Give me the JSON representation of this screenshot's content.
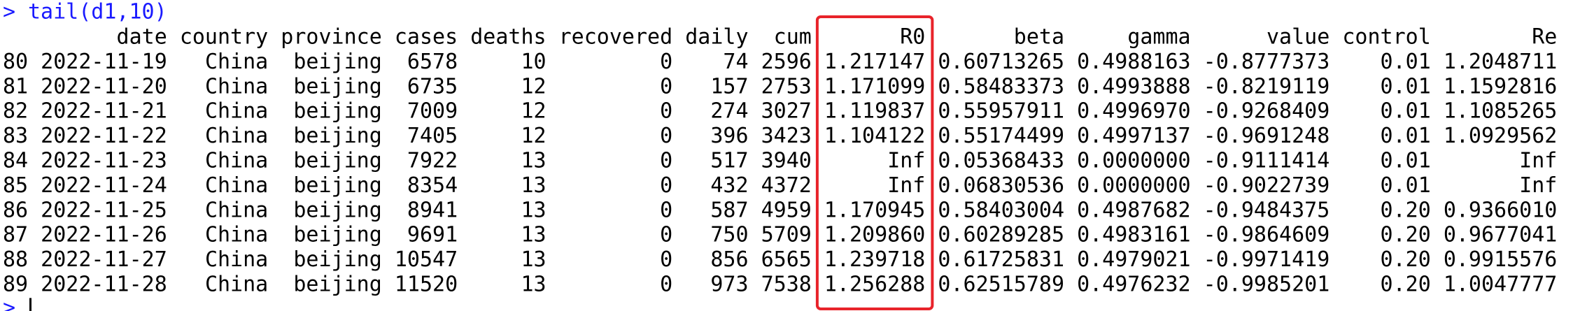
{
  "console": {
    "prompt": ">",
    "command": "tail(d1,10)",
    "table": {
      "header": [
        "date",
        "country",
        "province",
        "cases",
        "deaths",
        "recovered",
        "daily",
        "cum",
        "R0",
        "beta",
        "gamma",
        "value",
        "control",
        "Re"
      ],
      "rows": [
        [
          "80",
          "2022-11-19",
          "China",
          "beijing",
          "6578",
          "10",
          "0",
          "74",
          "2596",
          "1.217147",
          "0.60713265",
          "0.4988163",
          "-0.8777373",
          "0.01",
          "1.2048711"
        ],
        [
          "81",
          "2022-11-20",
          "China",
          "beijing",
          "6735",
          "12",
          "0",
          "157",
          "2753",
          "1.171099",
          "0.58483373",
          "0.4993888",
          "-0.8219119",
          "0.01",
          "1.1592816"
        ],
        [
          "82",
          "2022-11-21",
          "China",
          "beijing",
          "7009",
          "12",
          "0",
          "274",
          "3027",
          "1.119837",
          "0.55957911",
          "0.4996970",
          "-0.9268409",
          "0.01",
          "1.1085265"
        ],
        [
          "83",
          "2022-11-22",
          "China",
          "beijing",
          "7405",
          "12",
          "0",
          "396",
          "3423",
          "1.104122",
          "0.55174499",
          "0.4997137",
          "-0.9691248",
          "0.01",
          "1.0929562"
        ],
        [
          "84",
          "2022-11-23",
          "China",
          "beijing",
          "7922",
          "13",
          "0",
          "517",
          "3940",
          "Inf",
          "0.05368433",
          "0.0000000",
          "-0.9111414",
          "0.01",
          "Inf"
        ],
        [
          "85",
          "2022-11-24",
          "China",
          "beijing",
          "8354",
          "13",
          "0",
          "432",
          "4372",
          "Inf",
          "0.06830536",
          "0.0000000",
          "-0.9022739",
          "0.01",
          "Inf"
        ],
        [
          "86",
          "2022-11-25",
          "China",
          "beijing",
          "8941",
          "13",
          "0",
          "587",
          "4959",
          "1.170945",
          "0.58403004",
          "0.4987682",
          "-0.9484375",
          "0.20",
          "0.9366010"
        ],
        [
          "87",
          "2022-11-26",
          "China",
          "beijing",
          "9691",
          "13",
          "0",
          "750",
          "5709",
          "1.209860",
          "0.60289285",
          "0.4983161",
          "-0.9864609",
          "0.20",
          "0.9677041"
        ],
        [
          "88",
          "2022-11-27",
          "China",
          "beijing",
          "10547",
          "13",
          "0",
          "856",
          "6565",
          "1.239718",
          "0.61725831",
          "0.4979021",
          "-0.9971419",
          "0.20",
          "0.9915576"
        ],
        [
          "89",
          "2022-11-28",
          "China",
          "beijing",
          "11520",
          "13",
          "0",
          "973",
          "7538",
          "1.256288",
          "0.62515789",
          "0.4976232",
          "-0.9985201",
          "0.20",
          "1.0047777"
        ]
      ]
    }
  }
}
